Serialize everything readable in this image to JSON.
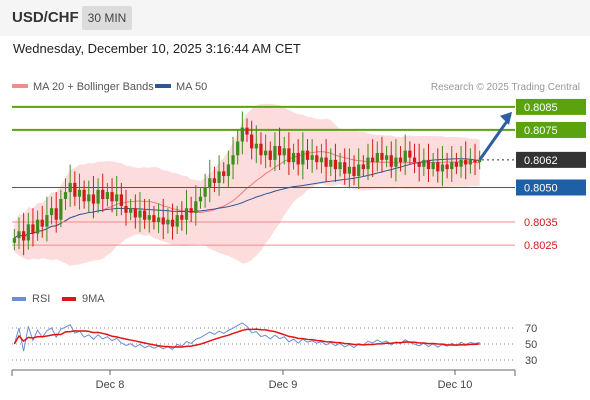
{
  "header": {
    "symbol": "USD/CHF",
    "timeframe": "30 MIN"
  },
  "datetime": "Wednesday, December 10, 2025 3:16:44 AM CET",
  "legend": {
    "ma20": "MA 20 + Bollinger Bands",
    "ma50": "MA 50",
    "copyright": "Research © 2025 Trading Central"
  },
  "rsi_legend": {
    "rsi": "RSI",
    "ma9": "9MA"
  },
  "colors": {
    "resistance": "#5aa30f",
    "support": "#1e5fa8",
    "weak_level": "#f08c8c",
    "current": "#333333",
    "bull_candle": "#3d8d1c",
    "bear_candle": "#d11a1a",
    "bollinger": "#fcdcdc",
    "ma20": "#f27a7a",
    "ma50": "#2d5693",
    "rsi": "#6a8fd8",
    "rsi_ma": "#e01414",
    "arrow": "#2d5f9e"
  },
  "chart_data": {
    "type": "candlestick",
    "x_axis": {
      "ticks": [
        "Dec 8",
        "Dec 9",
        "Dec 10"
      ]
    },
    "y_range": [
      0.8012,
      0.8088
    ],
    "levels": [
      {
        "value": "0.8085",
        "type": "resistance"
      },
      {
        "value": "0.8075",
        "type": "resistance"
      },
      {
        "value": "0.8062",
        "type": "current"
      },
      {
        "value": "0.8050",
        "type": "support"
      },
      {
        "value": "0.8035",
        "type": "weak"
      },
      {
        "value": "0.8025",
        "type": "weak"
      }
    ],
    "forecast_target": 0.8082,
    "candles_close": [
      0.8028,
      0.8031,
      0.8027,
      0.8034,
      0.803,
      0.8036,
      0.8033,
      0.8038,
      0.8041,
      0.8036,
      0.8045,
      0.8048,
      0.8052,
      0.8046,
      0.8049,
      0.8044,
      0.8047,
      0.8043,
      0.8049,
      0.8045,
      0.8048,
      0.8044,
      0.8047,
      0.8042,
      0.8039,
      0.8041,
      0.8037,
      0.804,
      0.8036,
      0.8038,
      0.8035,
      0.8037,
      0.8034,
      0.8036,
      0.8033,
      0.8038,
      0.8036,
      0.8041,
      0.8039,
      0.8044,
      0.8046,
      0.805,
      0.8054,
      0.8052,
      0.8057,
      0.8055,
      0.806,
      0.8064,
      0.807,
      0.8076,
      0.8073,
      0.8067,
      0.8069,
      0.8064,
      0.8066,
      0.8062,
      0.8068,
      0.8064,
      0.8067,
      0.8061,
      0.8065,
      0.806,
      0.8066,
      0.8062,
      0.8064,
      0.8061,
      0.8063,
      0.8059,
      0.8062,
      0.8058,
      0.8061,
      0.8056,
      0.8059,
      0.8055,
      0.806,
      0.8058,
      0.8063,
      0.8061,
      0.8065,
      0.8062,
      0.8064,
      0.8059,
      0.8063,
      0.8061,
      0.8066,
      0.8063,
      0.8061,
      0.8059,
      0.8062,
      0.8058,
      0.8061,
      0.8057,
      0.806,
      0.8058,
      0.8061,
      0.8059,
      0.8062,
      0.806,
      0.8062,
      0.8061,
      0.8062
    ],
    "rsi_axis": {
      "ticks": [
        "70",
        "50",
        "30"
      ]
    },
    "rsi_levels": [
      70,
      50,
      30
    ]
  }
}
